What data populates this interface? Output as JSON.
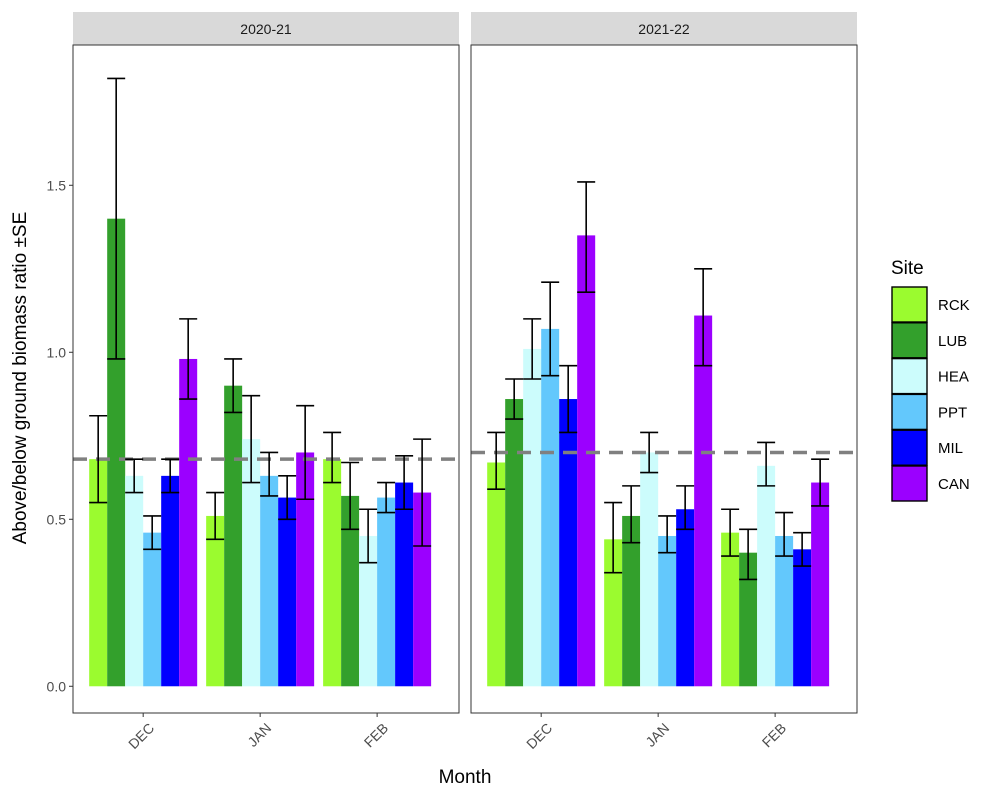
{
  "chart_data": {
    "type": "bar",
    "xlabel": "Month",
    "ylabel": "Above/below ground biomass ratio ±SE",
    "ylim": [
      -0.08,
      1.92
    ],
    "y_ticks": [
      "0.0",
      "0.5",
      "1.0",
      "1.5"
    ],
    "categories": [
      "DEC",
      "JAN",
      "FEB"
    ],
    "legend": {
      "title": "Site",
      "placement": "right",
      "entries": [
        "RCK",
        "LUB",
        "HEA",
        "PPT",
        "MIL",
        "CAN"
      ]
    },
    "colors": {
      "RCK": "#9bfb2f",
      "LUB": "#33a02c",
      "HEA": "#ccfcfc",
      "PPT": "#63c8fc",
      "MIL": "#0000ff",
      "CAN": "#9b00ff",
      "reference_line": "#808080",
      "strip_fill": "#d9d9d9",
      "error_bar": "#000000"
    },
    "grid": false,
    "panels": [
      {
        "label": "2020-21",
        "reference_line": 0.68,
        "series": [
          {
            "name": "RCK",
            "values": [
              0.68,
              0.51,
              0.68
            ],
            "se_low": [
              0.55,
              0.44,
              0.61
            ],
            "se_high": [
              0.81,
              0.58,
              0.76
            ]
          },
          {
            "name": "LUB",
            "values": [
              1.4,
              0.9,
              0.57
            ],
            "se_low": [
              0.98,
              0.82,
              0.47
            ],
            "se_high": [
              1.82,
              0.98,
              0.67
            ]
          },
          {
            "name": "HEA",
            "values": [
              0.63,
              0.74,
              0.45
            ],
            "se_low": [
              0.58,
              0.61,
              0.37
            ],
            "se_high": [
              0.68,
              0.87,
              0.53
            ]
          },
          {
            "name": "PPT",
            "values": [
              0.46,
              0.63,
              0.565
            ],
            "se_low": [
              0.41,
              0.57,
              0.52
            ],
            "se_high": [
              0.51,
              0.7,
              0.61
            ]
          },
          {
            "name": "MIL",
            "values": [
              0.63,
              0.565,
              0.61
            ],
            "se_low": [
              0.58,
              0.5,
              0.53
            ],
            "se_high": [
              0.68,
              0.63,
              0.69
            ]
          },
          {
            "name": "CAN",
            "values": [
              0.98,
              0.7,
              0.58
            ],
            "se_low": [
              0.86,
              0.56,
              0.42
            ],
            "se_high": [
              1.1,
              0.84,
              0.74
            ]
          }
        ]
      },
      {
        "label": "2021-22",
        "reference_line": 0.7,
        "series": [
          {
            "name": "RCK",
            "values": [
              0.67,
              0.44,
              0.46
            ],
            "se_low": [
              0.59,
              0.34,
              0.39
            ],
            "se_high": [
              0.76,
              0.55,
              0.53
            ]
          },
          {
            "name": "LUB",
            "values": [
              0.86,
              0.51,
              0.4
            ],
            "se_low": [
              0.8,
              0.43,
              0.32
            ],
            "se_high": [
              0.92,
              0.6,
              0.47
            ]
          },
          {
            "name": "HEA",
            "values": [
              1.01,
              0.7,
              0.66
            ],
            "se_low": [
              0.92,
              0.64,
              0.6
            ],
            "se_high": [
              1.1,
              0.76,
              0.73
            ]
          },
          {
            "name": "PPT",
            "values": [
              1.07,
              0.45,
              0.45
            ],
            "se_low": [
              0.93,
              0.4,
              0.39
            ],
            "se_high": [
              1.21,
              0.51,
              0.52
            ]
          },
          {
            "name": "MIL",
            "values": [
              0.86,
              0.53,
              0.41
            ],
            "se_low": [
              0.76,
              0.47,
              0.36
            ],
            "se_high": [
              0.96,
              0.6,
              0.46
            ]
          },
          {
            "name": "CAN",
            "values": [
              1.35,
              1.11,
              0.61
            ],
            "se_low": [
              1.18,
              0.96,
              0.54
            ],
            "se_high": [
              1.51,
              1.25,
              0.68
            ]
          }
        ]
      }
    ]
  }
}
